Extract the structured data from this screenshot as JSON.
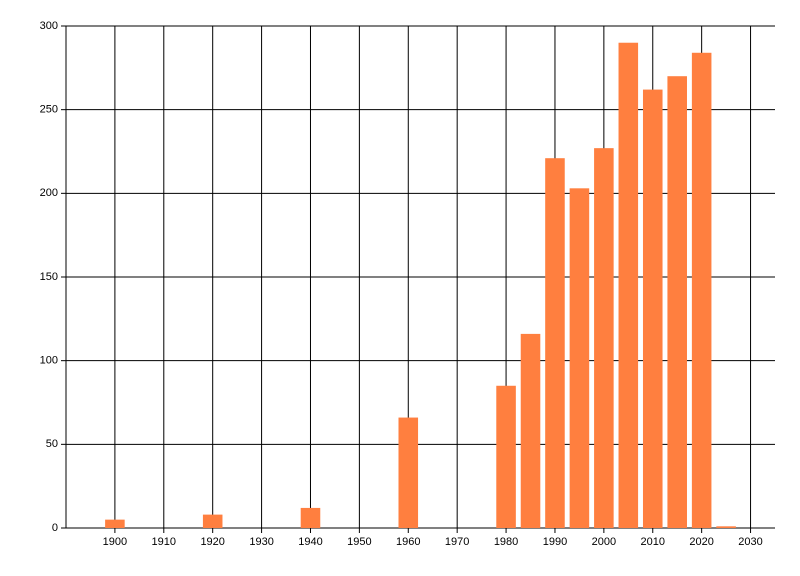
{
  "chart_data": {
    "type": "bar",
    "x": [
      1900,
      1920,
      1940,
      1960,
      1980,
      1985,
      1990,
      1995,
      2000,
      2005,
      2010,
      2015,
      2020,
      2025
    ],
    "values": [
      5,
      8,
      12,
      66,
      85,
      116,
      221,
      203,
      227,
      290,
      262,
      270,
      284,
      1
    ],
    "color": "#ff7f3f",
    "bar_width": 4,
    "xlim": [
      1890,
      2035
    ],
    "xticks": [
      1900,
      1910,
      1920,
      1930,
      1940,
      1950,
      1960,
      1970,
      1980,
      1990,
      2000,
      2010,
      2020,
      2030
    ],
    "ylim": [
      0,
      300
    ],
    "yticks": [
      0,
      50,
      100,
      150,
      200,
      250,
      300
    ],
    "grid": true
  }
}
